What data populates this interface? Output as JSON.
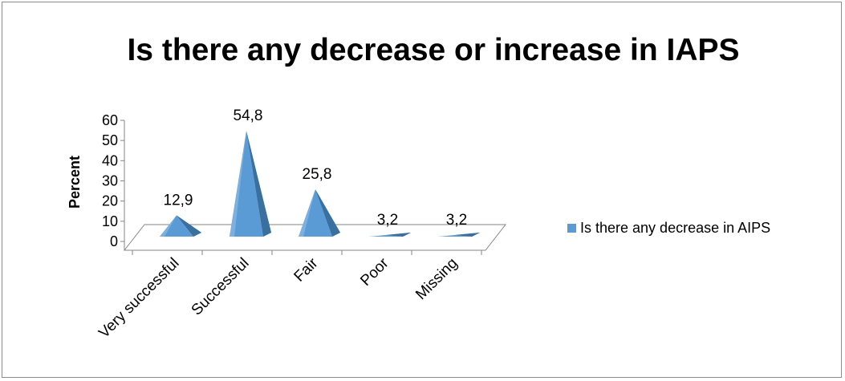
{
  "chart_data": {
    "type": "bar",
    "title": "Is there any decrease or increase in IAPS",
    "xlabel": "",
    "ylabel": "Percent",
    "categories": [
      "Very successful",
      "Successful",
      "Fair",
      "Poor",
      "Missing"
    ],
    "series": [
      {
        "name": "Is there any decrease in AIPS",
        "values": [
          12.9,
          54.8,
          25.8,
          3.2,
          3.2
        ],
        "data_labels": [
          "12,9",
          "54,8",
          "25,8",
          "3,2",
          "3,2"
        ]
      }
    ],
    "yticks": [
      "0",
      "10",
      "20",
      "30",
      "40",
      "50",
      "60"
    ],
    "ylim": [
      0,
      60
    ],
    "grid": false,
    "legend_position": "right",
    "bar_shape": "3d-pyramid",
    "colors": {
      "bar_front": "#5b9bd5",
      "bar_side": "#3a6f9e",
      "bar_highlight": "#8fbfe8",
      "floor": "#ffffff",
      "axis": "#868686"
    }
  }
}
